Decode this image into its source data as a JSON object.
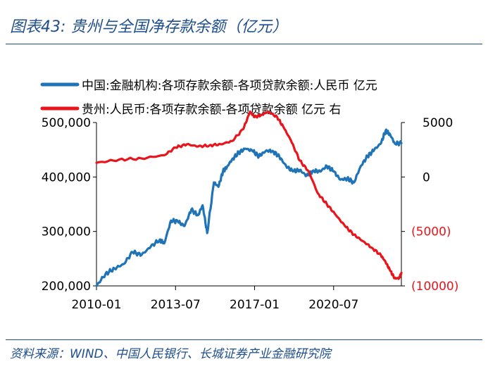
{
  "figure": {
    "title": "图表43:  贵州与全国净存款余额（亿元）",
    "source": "资料来源：WIND、中国人民银行、长城证券产业金融研究院"
  },
  "colors": {
    "brand": "#1f4e8c",
    "series_china": "#1f73b7",
    "series_guizhou": "#e8161c",
    "axis": "#000000"
  },
  "chart_data": {
    "type": "line",
    "title": "",
    "xlabel": "",
    "ylabel_left": "",
    "ylabel_right": "",
    "x_start": 2010.0,
    "x_end": 2023.5,
    "x_ticks": [
      2010.0,
      2013.5,
      2017.0,
      2020.5
    ],
    "x_tick_labels": [
      "2010-01",
      "2013-07",
      "2017-01",
      "2020-07"
    ],
    "ylim_left": [
      200000,
      500000
    ],
    "y_ticks_left": [
      200000,
      300000,
      400000,
      500000
    ],
    "y_tick_labels_left": [
      "200,000",
      "300,000",
      "400,000",
      "500,000"
    ],
    "ylim_right": [
      -10000,
      5000
    ],
    "y_ticks_right": [
      -10000,
      -5000,
      0,
      5000
    ],
    "y_tick_labels_right": [
      "(10000)",
      "(5000)",
      "0",
      "5000"
    ],
    "series": [
      {
        "name": "中国:金融机构:各项存款余额-各项贷款余额:人民币 亿元",
        "axis": "left",
        "x": [
          2010.0,
          2010.4,
          2010.8,
          2011.2,
          2011.6,
          2012.0,
          2012.4,
          2012.8,
          2013.0,
          2013.3,
          2013.6,
          2013.9,
          2014.2,
          2014.5,
          2014.7,
          2014.9,
          2015.2,
          2015.4,
          2015.6,
          2015.8,
          2016.0,
          2016.3,
          2016.6,
          2016.9,
          2017.2,
          2017.5,
          2017.8,
          2018.1,
          2018.4,
          2018.7,
          2019.0,
          2019.3,
          2019.6,
          2019.9,
          2020.2,
          2020.5,
          2020.8,
          2021.1,
          2021.4,
          2021.7,
          2022.0,
          2022.3,
          2022.6,
          2022.8,
          2023.0,
          2023.2,
          2023.5
        ],
        "values": [
          200000,
          222000,
          232000,
          240000,
          262000,
          257000,
          272000,
          285000,
          278000,
          320000,
          318000,
          310000,
          340000,
          330000,
          348000,
          297000,
          390000,
          382000,
          410000,
          420000,
          432000,
          445000,
          452000,
          448000,
          438000,
          448000,
          448000,
          437000,
          420000,
          410000,
          413000,
          402000,
          412000,
          410000,
          420000,
          410000,
          395000,
          397000,
          390000,
          420000,
          438000,
          450000,
          462000,
          485000,
          478000,
          462000,
          462000
        ]
      },
      {
        "name": "贵州:人民币:各项存款余额-各项贷款余额 亿元 右",
        "axis": "right",
        "x": [
          2010.0,
          2011.0,
          2012.0,
          2013.0,
          2013.5,
          2014.0,
          2014.5,
          2015.0,
          2015.5,
          2016.0,
          2016.5,
          2016.8,
          2017.0,
          2017.3,
          2017.6,
          2018.0,
          2018.3,
          2018.6,
          2019.0,
          2019.4,
          2019.8,
          2020.2,
          2020.6,
          2021.0,
          2021.4,
          2021.8,
          2022.2,
          2022.6,
          2022.8,
          2023.0,
          2023.2,
          2023.4,
          2023.5
        ],
        "values": [
          1300,
          1600,
          1700,
          2000,
          2700,
          3000,
          2800,
          2900,
          3000,
          3300,
          4400,
          6000,
          5500,
          5700,
          6000,
          5500,
          4500,
          3400,
          1500,
          500,
          -1500,
          -2500,
          -3500,
          -4500,
          -5300,
          -5900,
          -6500,
          -7200,
          -7800,
          -8600,
          -9300,
          -9300,
          -8800
        ]
      }
    ]
  }
}
